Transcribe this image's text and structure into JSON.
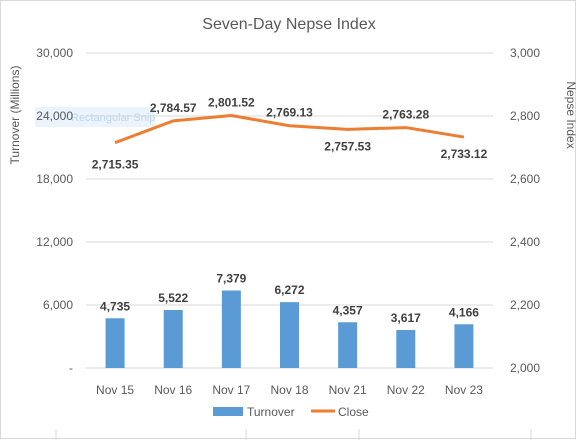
{
  "chart_data": {
    "type": "bar",
    "title": "Seven-Day Nepse Index",
    "categories": [
      "Nov 15",
      "Nov 16",
      "Nov 17",
      "Nov 18",
      "Nov 21",
      "Nov 22",
      "Nov 23"
    ],
    "series": [
      {
        "name": "Turnover",
        "type": "bar",
        "axis": "left",
        "color": "#5b9bd5",
        "values": [
          4735,
          5522,
          7379,
          6272,
          4357,
          3617,
          4166
        ],
        "labels": [
          "4,735",
          "5,522",
          "7,379",
          "6,272",
          "4,357",
          "3,617",
          "4,166"
        ]
      },
      {
        "name": "Close",
        "type": "line",
        "axis": "right",
        "color": "#ed7d31",
        "values": [
          2715.35,
          2784.57,
          2801.52,
          2769.13,
          2757.53,
          2763.28,
          2733.12
        ],
        "labels": [
          "2,715.35",
          "2,784.57",
          "2,801.52",
          "2,769.13",
          "2,757.53",
          "2,763.28",
          "2,733.12"
        ]
      }
    ],
    "ylabel": "Turnover (Millions)",
    "y2label": "Nepse Index",
    "ylim": [
      0,
      30000
    ],
    "y2lim": [
      2000,
      3000
    ],
    "yticks": [
      0,
      6000,
      12000,
      18000,
      24000,
      30000
    ],
    "ytick_labels": [
      "-",
      "6,000",
      "12,000",
      "18,000",
      "24,000",
      "30,000"
    ],
    "y2ticks": [
      2000,
      2200,
      2400,
      2600,
      2800,
      3000
    ],
    "y2tick_labels": [
      "2,000",
      "2,200",
      "2,400",
      "2,600",
      "2,800",
      "3,000"
    ],
    "grid": true,
    "legend_position": "bottom",
    "legend": [
      "Turnover",
      "Close"
    ]
  },
  "overlay_text": "Rectangular Snip"
}
